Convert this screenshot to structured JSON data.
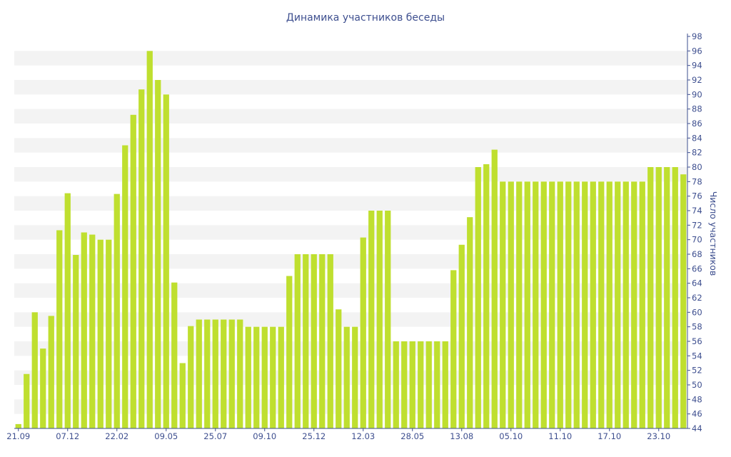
{
  "chart_data": {
    "type": "bar",
    "title": "Динамика участников беседы",
    "xlabel": "",
    "ylabel": "Число участников",
    "ylim": [
      44,
      98
    ],
    "y_ticks": [
      44,
      46,
      48,
      50,
      52,
      54,
      56,
      58,
      60,
      62,
      64,
      66,
      68,
      70,
      72,
      74,
      76,
      78,
      80,
      82,
      84,
      86,
      88,
      90,
      92,
      94,
      96,
      98
    ],
    "y_axis_position": "right",
    "grid": "horizontal bands",
    "x_tick_labels": [
      {
        "index": 0,
        "label": "21.09"
      },
      {
        "index": 6,
        "label": "07.12"
      },
      {
        "index": 12,
        "label": "22.02"
      },
      {
        "index": 18,
        "label": "09.05"
      },
      {
        "index": 24,
        "label": "25.07"
      },
      {
        "index": 30,
        "label": "09.10"
      },
      {
        "index": 36,
        "label": "25.12"
      },
      {
        "index": 42,
        "label": "12.03"
      },
      {
        "index": 48,
        "label": "28.05"
      },
      {
        "index": 54,
        "label": "13.08"
      },
      {
        "index": 60,
        "label": "05.10"
      },
      {
        "index": 66,
        "label": "11.10"
      },
      {
        "index": 72,
        "label": "17.10"
      },
      {
        "index": 78,
        "label": "23.10"
      }
    ],
    "values": [
      44.6,
      51.5,
      60,
      55,
      59.5,
      71.3,
      76.4,
      67.9,
      71,
      70.7,
      70,
      70,
      76.3,
      83,
      87.2,
      90.7,
      96,
      92,
      90,
      64.1,
      53,
      58.1,
      59,
      59,
      59,
      59,
      59,
      59,
      58,
      58,
      58,
      58,
      58,
      65,
      68,
      68,
      68,
      68,
      68,
      60.4,
      58,
      58,
      70.3,
      74,
      74,
      74,
      56,
      56,
      56,
      56,
      56,
      56,
      56,
      65.8,
      69.3,
      73.1,
      80,
      80.4,
      82.4,
      78,
      78,
      78,
      78,
      78,
      78,
      78,
      78,
      78,
      78,
      78,
      78,
      78,
      78,
      78,
      78,
      78,
      78,
      80,
      80,
      80,
      80,
      79
    ],
    "colors": {
      "bar": "#bfdf2f",
      "text": "#3e4f8f",
      "band": "#f3f3f3",
      "axis": "#3e4f8f"
    }
  }
}
